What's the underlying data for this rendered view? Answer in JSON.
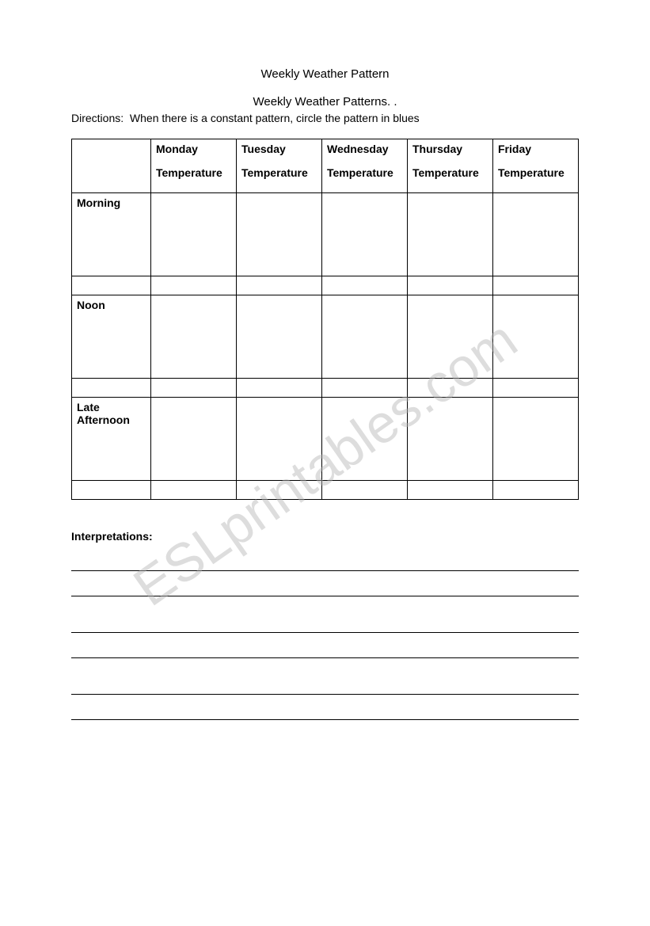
{
  "title_main": "Weekly Weather Pattern",
  "title_sub": "Weekly Weather Patterns. .",
  "directions_label": "Directions:",
  "directions_text": "When there is a constant pattern, circle the pattern in blues",
  "watermark_text": "ESLprintables.com",
  "table": {
    "days": [
      {
        "day": "Monday",
        "sub": "Temperature"
      },
      {
        "day": "Tuesday",
        "sub": "Temperature"
      },
      {
        "day": "Wednesday",
        "sub": "Temperature"
      },
      {
        "day": "Thursday",
        "sub": "Temperature"
      },
      {
        "day": "Friday",
        "sub": "Temperature"
      }
    ],
    "times": [
      "Morning",
      "Noon",
      "Late Afternoon"
    ]
  },
  "interpretations_label": "Interpretations:",
  "styling": {
    "background_color": "#ffffff",
    "border_color": "#000000",
    "text_color": "#000000",
    "watermark_color": "rgba(180,180,180,0.45)",
    "title_fontsize": 15,
    "body_fontsize": 14,
    "watermark_fontsize": 68,
    "watermark_angle": -35,
    "num_lines": 6,
    "line_height": 32,
    "table_col_first_width": 100,
    "header_row_height": 68,
    "tall_row_height": 105,
    "short_row_height": 24
  }
}
